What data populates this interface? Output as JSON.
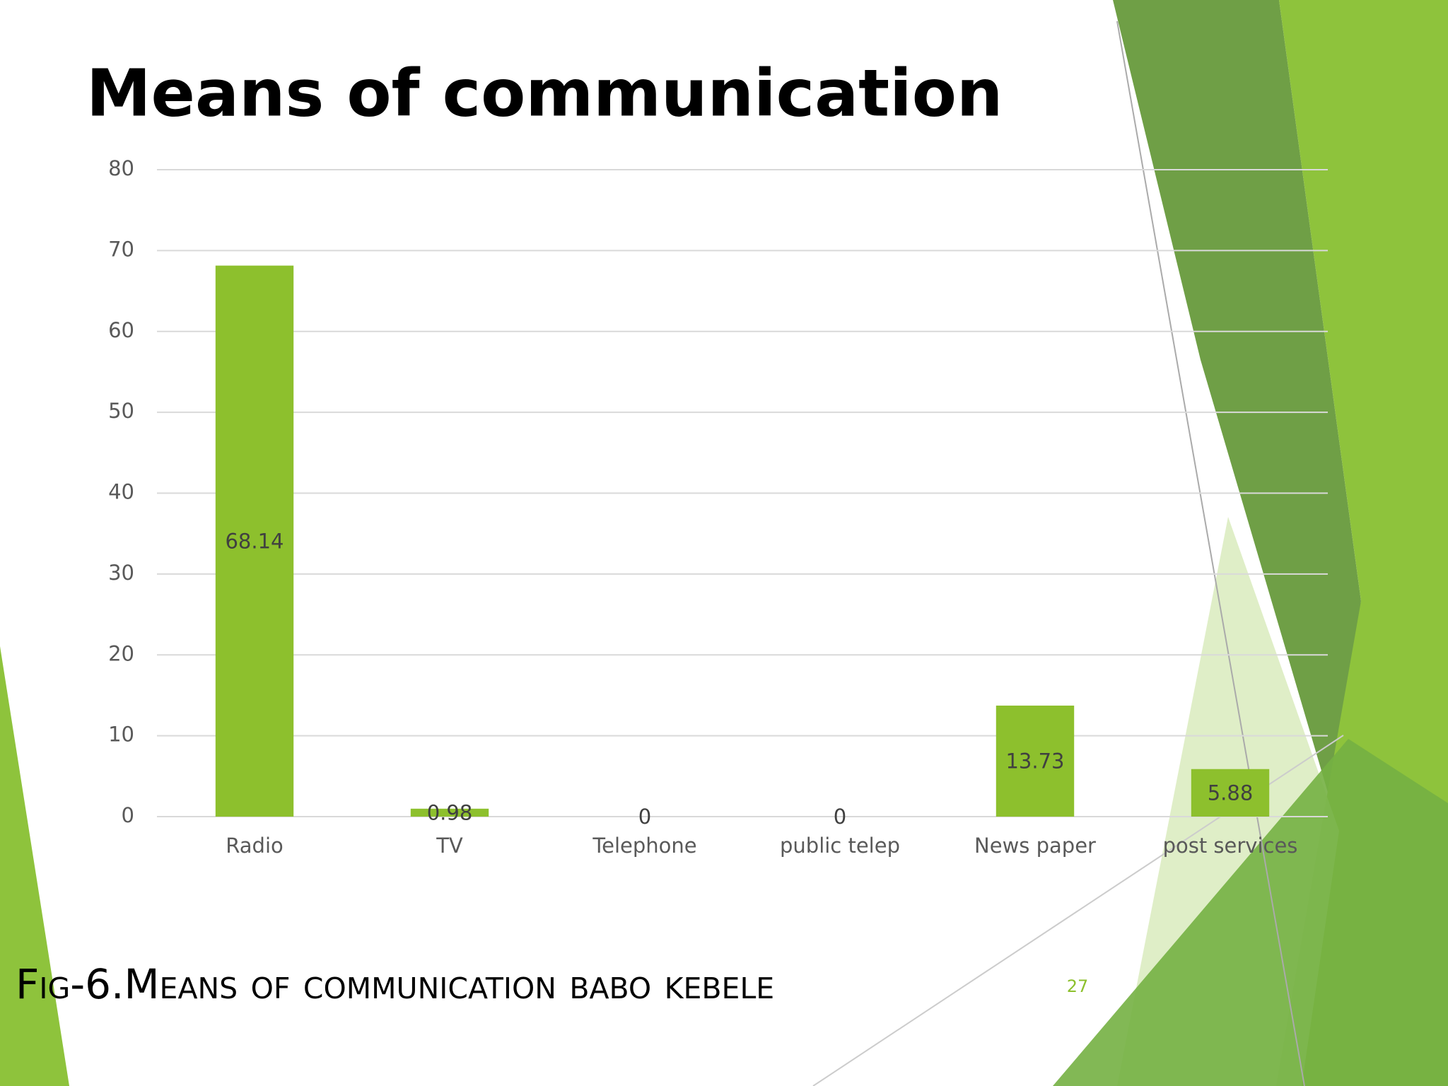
{
  "title": "Means of communication",
  "caption": "Fig-6.Means of communication babo kebele",
  "page_number": "27",
  "chart_data": {
    "type": "bar",
    "categories": [
      "Radio",
      "TV",
      "Telephone",
      "public telep",
      "News paper",
      "post services"
    ],
    "values": [
      68.14,
      0.98,
      0,
      0,
      13.73,
      5.88
    ],
    "color": "#8dc02d",
    "ylim": [
      0,
      80
    ],
    "yticks": [
      0,
      10,
      20,
      30,
      40,
      50,
      60,
      70,
      80
    ],
    "grid": true
  }
}
